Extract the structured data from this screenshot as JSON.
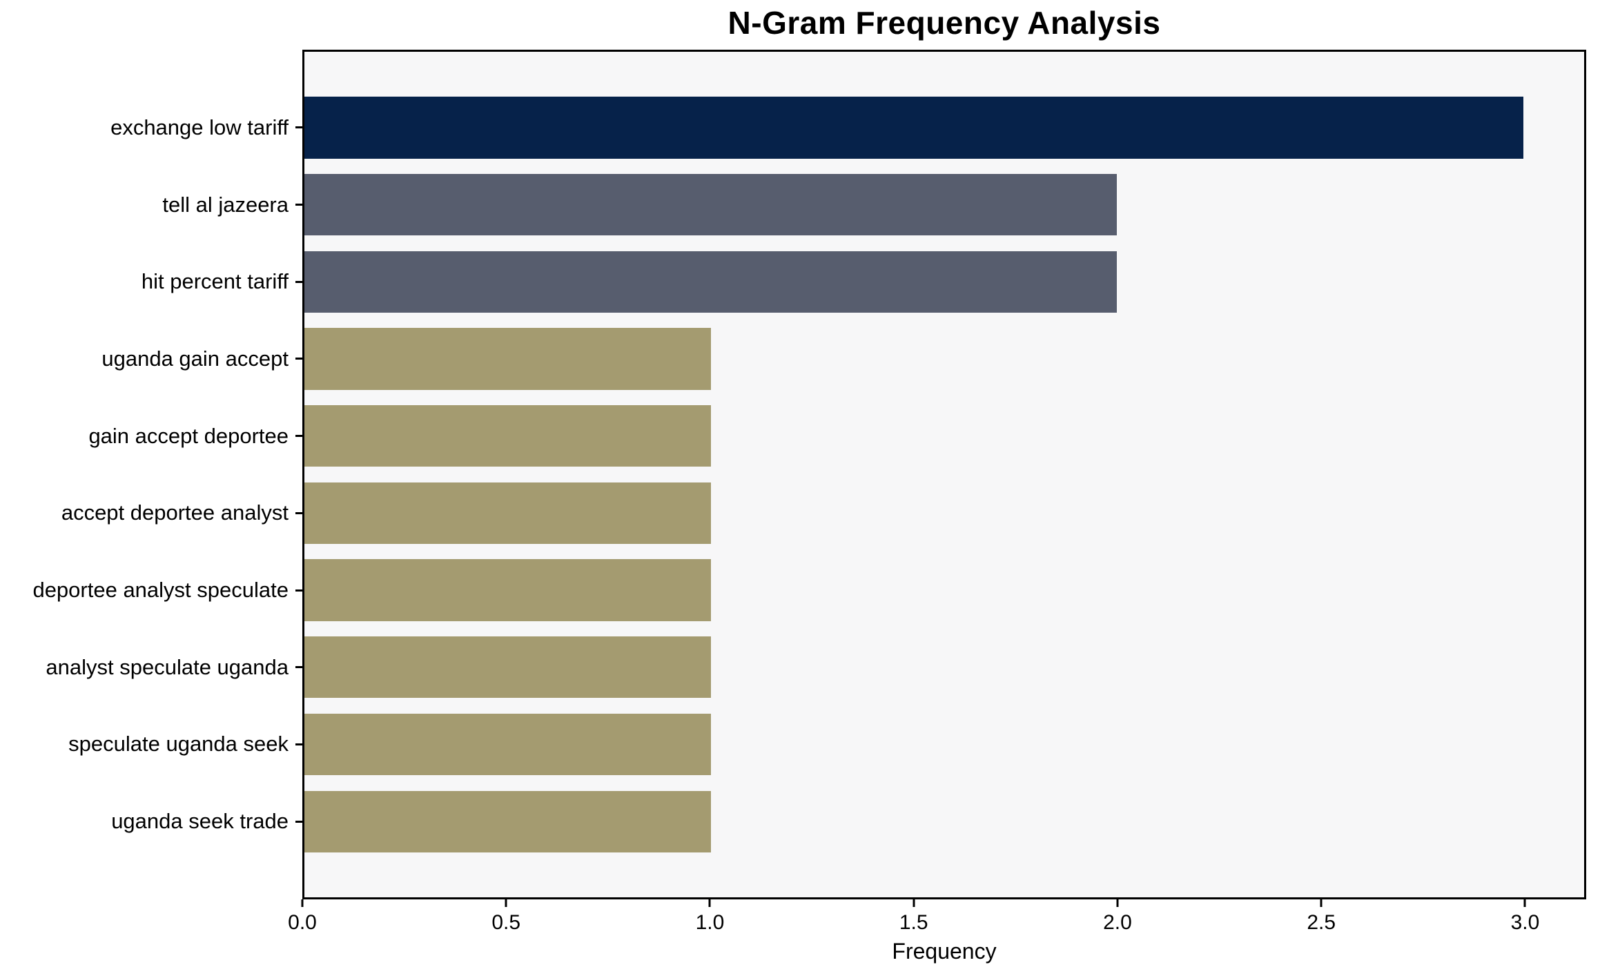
{
  "chart_data": {
    "type": "bar",
    "orientation": "horizontal",
    "title": "N-Gram Frequency Analysis",
    "xlabel": "Frequency",
    "ylabel": "",
    "categories": [
      "exchange low tariff",
      "tell al jazeera",
      "hit percent tariff",
      "uganda gain accept",
      "gain accept deportee",
      "accept deportee analyst",
      "deportee analyst speculate",
      "analyst speculate uganda",
      "speculate uganda seek",
      "uganda seek trade"
    ],
    "values": [
      3,
      2,
      2,
      1,
      1,
      1,
      1,
      1,
      1,
      1
    ],
    "bar_colors": [
      "#06224a",
      "#575d6e",
      "#575d6e",
      "#a49b70",
      "#a49b70",
      "#a49b70",
      "#a49b70",
      "#a49b70",
      "#a49b70",
      "#a49b70"
    ],
    "xlim": [
      0,
      3.15
    ],
    "x_ticks": [
      "0.0",
      "0.5",
      "1.0",
      "1.5",
      "2.0",
      "2.5",
      "3.0"
    ],
    "x_tick_values": [
      0,
      0.5,
      1.0,
      1.5,
      2.0,
      2.5,
      3.0
    ],
    "grid": false,
    "legend": null,
    "plot_bg": "#f7f7f8",
    "figure_bg": "#ffffff",
    "spine_color": "#000000"
  }
}
